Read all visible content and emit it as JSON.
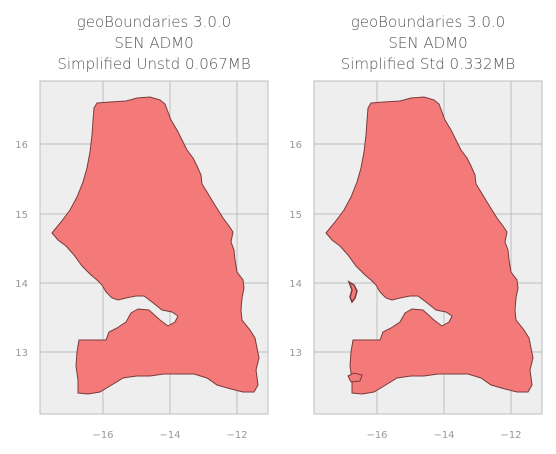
{
  "panels": [
    {
      "title_lines": [
        "geoBoundaries 3.0.0",
        "SEN ADM0",
        "Simplified Unstd 0.067MB"
      ],
      "x_ticks": [
        "−16",
        "−14",
        "−12"
      ],
      "y_ticks": [
        "16",
        "15",
        "14",
        "13"
      ]
    },
    {
      "title_lines": [
        "geoBoundaries 3.0.0",
        "SEN ADM0",
        "Simplified Std 0.332MB"
      ],
      "x_ticks": [
        "−16",
        "−14",
        "−12"
      ],
      "y_ticks": [
        "16",
        "15",
        "14",
        "13"
      ]
    }
  ],
  "colors": {
    "plot_background": "#eeeeee",
    "grid": "#bdbdbd",
    "fill": "#f47a7a",
    "outline": "#7a3a3a"
  }
}
